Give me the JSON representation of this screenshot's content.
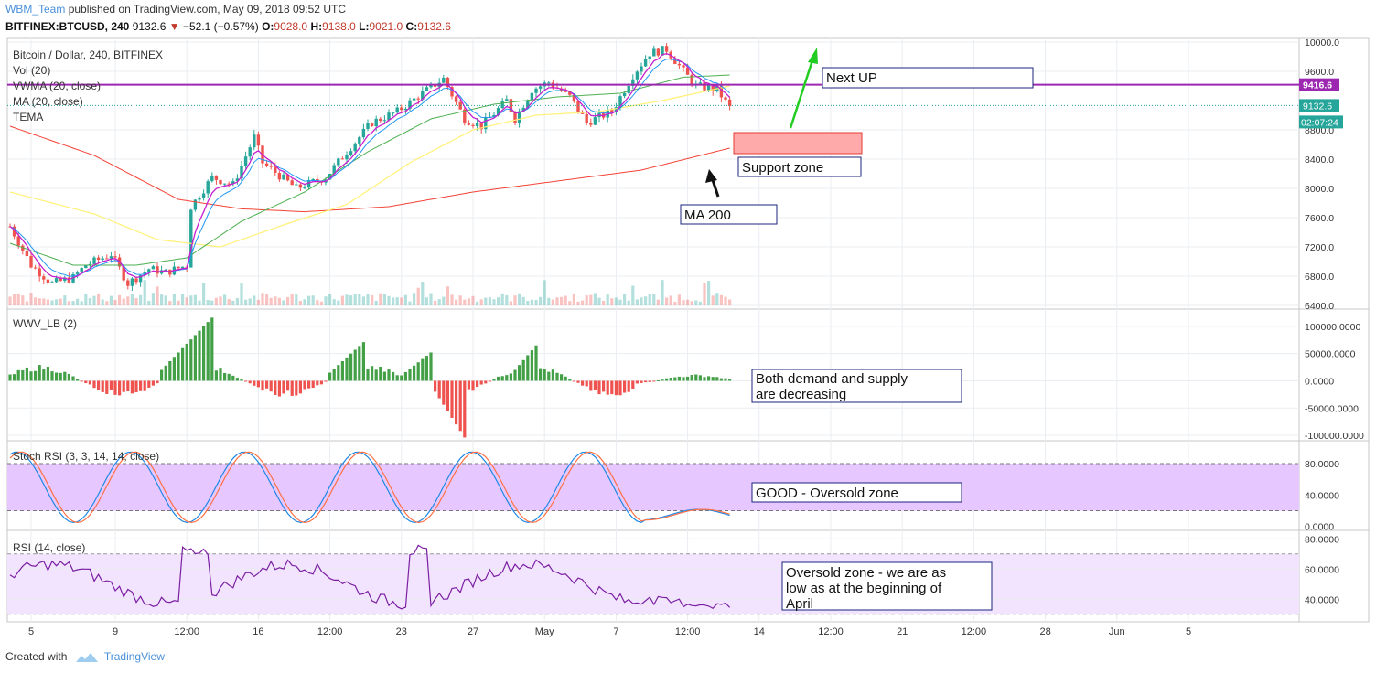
{
  "header": {
    "author": "WBM_Team",
    "published": "published on TradingView.com, May 09, 2018 09:52 UTC",
    "symbol": "BITFINEX:BTCUSD, 240",
    "price": "9132.6",
    "change": "−52.1 (−0.57%)",
    "o_label": "O:",
    "o_value": "9028.0",
    "h_label": "H:",
    "h_value": "9138.0",
    "l_label": "L:",
    "l_value": "9021.0",
    "c_label": "C:",
    "c_value": "9132.6"
  },
  "colors": {
    "up": "#26a69a",
    "down": "#ef5350",
    "grid": "#e9edf1",
    "border": "#c7c7c7",
    "resistance": "#9c27b0",
    "ma200": "#f44336",
    "vwma": "#2196f3",
    "ma20": "#fff176",
    "tema": "#c51fcf",
    "ma_long": "#4caf50",
    "stoch_k": "#1e88e5",
    "stoch_d": "#ff7043",
    "rsi": "#7b1fa2",
    "band": "#e6c7ff",
    "rsi_band": "#f2e4ff",
    "price_tag": "#26a69a"
  },
  "chart_data": [
    {
      "type": "candlestick",
      "title": "Bitcoin / Dollar, 240, BITFINEX",
      "indicators": [
        "Vol (20)",
        "VWMA (20, close)",
        "MA (20, close)",
        "TEMA"
      ],
      "y_ticks": [
        "10000.0",
        "9600.0",
        "8800.0",
        "8400.0",
        "8000.0",
        "7600.0",
        "7200.0",
        "6800.0",
        "6400.0"
      ],
      "y_range": [
        6350,
        10050
      ],
      "resistance": 9416.6,
      "resistance_label": "9416.6",
      "last_price": 9132.6,
      "last_price_label": "9132.6",
      "countdown": "02:07:24",
      "anchors": [
        [
          0,
          7480
        ],
        [
          5,
          6950
        ],
        [
          10,
          6700
        ],
        [
          15,
          6780
        ],
        [
          18,
          6950
        ],
        [
          24,
          7100
        ],
        [
          28,
          6700
        ],
        [
          33,
          6900
        ],
        [
          37,
          6850
        ],
        [
          42,
          6950
        ],
        [
          43,
          7750
        ],
        [
          48,
          8150
        ],
        [
          53,
          8050
        ],
        [
          58,
          8700
        ],
        [
          60,
          8350
        ],
        [
          68,
          8000
        ],
        [
          75,
          8150
        ],
        [
          80,
          8500
        ],
        [
          86,
          8900
        ],
        [
          92,
          9050
        ],
        [
          98,
          9300
        ],
        [
          103,
          9500
        ],
        [
          108,
          8950
        ],
        [
          112,
          8850
        ],
        [
          118,
          9200
        ],
        [
          120,
          8950
        ],
        [
          124,
          9350
        ],
        [
          128,
          9450
        ],
        [
          133,
          9250
        ],
        [
          137,
          8900
        ],
        [
          143,
          9050
        ],
        [
          148,
          9550
        ],
        [
          152,
          9850
        ],
        [
          156,
          9900
        ],
        [
          160,
          9600
        ],
        [
          163,
          9400
        ],
        [
          168,
          9350
        ],
        [
          171,
          9100
        ]
      ],
      "n_candles": 172,
      "ma200": [
        [
          0,
          8850
        ],
        [
          20,
          8450
        ],
        [
          40,
          7850
        ],
        [
          55,
          7720
        ],
        [
          70,
          7680
        ],
        [
          90,
          7750
        ],
        [
          110,
          7950
        ],
        [
          130,
          8100
        ],
        [
          150,
          8250
        ],
        [
          171,
          8550
        ]
      ],
      "ma_yellow": [
        [
          0,
          7950
        ],
        [
          20,
          7650
        ],
        [
          35,
          7300
        ],
        [
          50,
          7200
        ],
        [
          65,
          7500
        ],
        [
          80,
          7780
        ],
        [
          95,
          8350
        ],
        [
          110,
          8800
        ],
        [
          125,
          9000
        ],
        [
          140,
          9050
        ],
        [
          155,
          9200
        ],
        [
          171,
          9400
        ]
      ],
      "ma_green": [
        [
          0,
          7250
        ],
        [
          15,
          6950
        ],
        [
          30,
          6950
        ],
        [
          42,
          7050
        ],
        [
          55,
          7550
        ],
        [
          70,
          7950
        ],
        [
          85,
          8500
        ],
        [
          100,
          8950
        ],
        [
          115,
          9150
        ],
        [
          130,
          9250
        ],
        [
          145,
          9300
        ],
        [
          160,
          9520
        ],
        [
          171,
          9550
        ]
      ]
    },
    {
      "type": "bar",
      "title": "WWV_LB (2)",
      "y_ticks": [
        "100000.0000",
        "50000.0000",
        "0.0000",
        "-50000.0000",
        "-100000.0000"
      ],
      "y_range": [
        -110000,
        130000
      ]
    },
    {
      "type": "line",
      "title": "Stoch RSI (3, 3, 14, 14, close)",
      "y_ticks": [
        "80.0000",
        "40.0000",
        "0.0000"
      ],
      "y_range": [
        -5,
        108
      ],
      "band": [
        20,
        80
      ]
    },
    {
      "type": "line",
      "title": "RSI (14, close)",
      "y_ticks": [
        "80.0000",
        "60.0000",
        "40.0000"
      ],
      "y_range": [
        25,
        85
      ],
      "band": [
        30,
        70
      ]
    }
  ],
  "x_axis": {
    "ticks": [
      {
        "label": "5",
        "idx": 5
      },
      {
        "label": "9",
        "idx": 25
      },
      {
        "label": "12:00",
        "idx": 42
      },
      {
        "label": "16",
        "idx": 59
      },
      {
        "label": "12:00",
        "idx": 76
      },
      {
        "label": "23",
        "idx": 93
      },
      {
        "label": "27",
        "idx": 110
      },
      {
        "label": "May",
        "idx": 127
      },
      {
        "label": "7",
        "idx": 144
      },
      {
        "label": "12:00",
        "idx": 161
      },
      {
        "label": "14",
        "idx": 178
      },
      {
        "label": "12:00",
        "idx": 195
      },
      {
        "label": "21",
        "idx": 212
      },
      {
        "label": "12:00",
        "idx": 229
      },
      {
        "label": "28",
        "idx": 246
      },
      {
        "label": "Jun",
        "idx": 263
      },
      {
        "label": "5",
        "idx": 280
      }
    ]
  },
  "annotations": {
    "next_up": "Next UP",
    "support_zone": "Support zone",
    "ma200": "MA 200",
    "demand_supply": [
      "Both demand and supply",
      "are decreasing"
    ],
    "good_oversold": "GOOD - Oversold zone",
    "oversold_note": [
      "Oversold zone - we are as",
      "low as at the beginning of",
      "April"
    ]
  },
  "footer": {
    "created_with": "Created with",
    "brand": "TradingView"
  }
}
